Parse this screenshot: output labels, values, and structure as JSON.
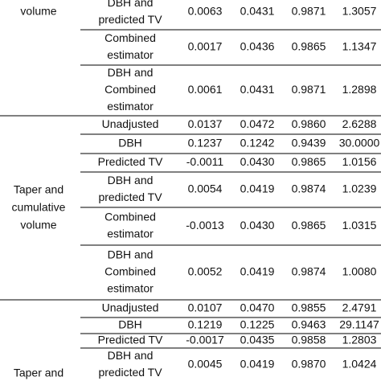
{
  "table": {
    "sections": [
      {
        "label_lines": [
          "volume"
        ],
        "rows": [
          {
            "method_lines": [
              "DBH and",
              "predicted TV"
            ],
            "values": [
              "0.0063",
              "0.0431",
              "0.9871",
              "1.3057"
            ]
          },
          {
            "method_lines": [
              "Combined",
              "estimator"
            ],
            "values": [
              "0.0017",
              "0.0436",
              "0.9865",
              "1.1347"
            ]
          },
          {
            "method_lines": [
              "DBH and",
              "Combined",
              "estimator"
            ],
            "values": [
              "0.0061",
              "0.0431",
              "0.9871",
              "1.2898"
            ]
          }
        ]
      },
      {
        "label_lines": [
          "Taper and",
          "cumulative",
          "volume"
        ],
        "rows": [
          {
            "method_lines": [
              "Unadjusted"
            ],
            "values": [
              "0.0137",
              "0.0472",
              "0.9860",
              "2.6288"
            ]
          },
          {
            "method_lines": [
              "DBH"
            ],
            "values": [
              "0.1237",
              "0.1242",
              "0.9439",
              "30.0000"
            ]
          },
          {
            "method_lines": [
              "Predicted TV"
            ],
            "values": [
              "-0.0011",
              "0.0430",
              "0.9865",
              "1.0156"
            ]
          },
          {
            "method_lines": [
              "DBH and",
              "predicted TV"
            ],
            "values": [
              "0.0054",
              "0.0419",
              "0.9874",
              "1.0239"
            ]
          },
          {
            "method_lines": [
              "Combined",
              "estimator"
            ],
            "values": [
              "-0.0013",
              "0.0430",
              "0.9865",
              "1.0315"
            ]
          },
          {
            "method_lines": [
              "DBH and",
              "Combined",
              "estimator"
            ],
            "values": [
              "0.0052",
              "0.0419",
              "0.9874",
              "1.0080"
            ]
          }
        ]
      },
      {
        "label_lines": [
          "Taper and"
        ],
        "rows": [
          {
            "method_lines": [
              "Unadjusted"
            ],
            "values": [
              "0.0107",
              "0.0470",
              "0.9855",
              "2.4791"
            ]
          },
          {
            "method_lines": [
              "DBH"
            ],
            "values": [
              "0.1219",
              "0.1225",
              "0.9463",
              "29.1147"
            ]
          },
          {
            "method_lines": [
              "Predicted TV"
            ],
            "values": [
              "-0.0017",
              "0.0435",
              "0.9858",
              "1.2803"
            ]
          },
          {
            "method_lines": [
              "DBH and",
              "predicted TV"
            ],
            "values": [
              "0.0045",
              "0.0419",
              "0.9870",
              "1.0424"
            ]
          }
        ]
      }
    ]
  }
}
